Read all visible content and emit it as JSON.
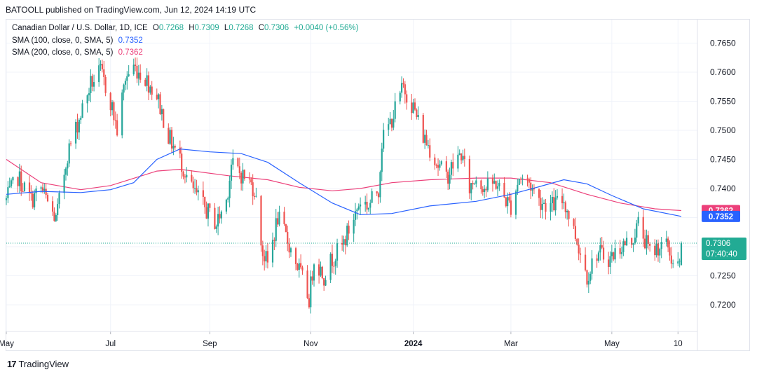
{
  "header": {
    "publisher_line": "BATOOLL published on TradingView.com, Jun 12, 2024 14:19 UTC"
  },
  "legend": {
    "symbol": "Canadian Dollar / U.S. Dollar, 1D, ICE",
    "o_label": "O",
    "o_value": "0.7268",
    "h_label": "H",
    "h_value": "0.7309",
    "l_label": "L",
    "l_value": "0.7268",
    "c_label": "C",
    "c_value": "0.7306",
    "change": "+0.0040 (+0.56%)",
    "sma100_label": "SMA (100, close, 0, SMA, 5)",
    "sma100_value": "0.7352",
    "sma200_label": "SMA (200, close, 0, SMA, 5)",
    "sma200_value": "0.7362"
  },
  "price_badges": {
    "sma200": "0.7362",
    "sma100": "0.7352",
    "last": "0.7306",
    "countdown": "07:40:40"
  },
  "footer": {
    "brand": "TradingView",
    "logo_text": "17"
  },
  "colors": {
    "up": "#26a69a",
    "down": "#ef5350",
    "sma100": "#2962ff",
    "sma200": "#ec407a",
    "grid": "#f0f3fa",
    "axis_text": "#131722",
    "last_price": "#22ab94"
  },
  "chart_data": {
    "type": "candlestick",
    "title": "Canadian Dollar / U.S. Dollar, 1D, ICE",
    "ylim": [
      0.7175,
      0.77
    ],
    "yticks": [
      0.72,
      0.725,
      0.73,
      0.735,
      0.74,
      0.745,
      0.75,
      0.755,
      0.76,
      0.765
    ],
    "ytick_labels": [
      "0.7200",
      "0.7250",
      "0.7300",
      "0.7350",
      "0.7400",
      "0.7450",
      "0.7500",
      "0.7550",
      "0.7600",
      "0.7650"
    ],
    "x_range": [
      "2023-05-01",
      "2024-06-12"
    ],
    "xticks": [
      {
        "date": "2023-05-01",
        "label": "May",
        "bold": false
      },
      {
        "date": "2023-07-03",
        "label": "Jul",
        "bold": false
      },
      {
        "date": "2023-09-01",
        "label": "Sep",
        "bold": false
      },
      {
        "date": "2023-11-01",
        "label": "Nov",
        "bold": false
      },
      {
        "date": "2024-01-02",
        "label": "2024",
        "bold": true
      },
      {
        "date": "2024-03-01",
        "label": "Mar",
        "bold": false
      },
      {
        "date": "2024-05-01",
        "label": "May",
        "bold": false
      },
      {
        "date": "2024-06-10",
        "label": "10",
        "bold": false
      }
    ],
    "close_path": [
      [
        "2023-05-01",
        0.738
      ],
      [
        "2023-05-08",
        0.742
      ],
      [
        "2023-05-16",
        0.738
      ],
      [
        "2023-05-22",
        0.74
      ],
      [
        "2023-05-31",
        0.7345
      ],
      [
        "2023-06-07",
        0.746
      ],
      [
        "2023-06-14",
        0.752
      ],
      [
        "2023-06-21",
        0.758
      ],
      [
        "2023-06-27",
        0.76
      ],
      [
        "2023-07-03",
        0.755
      ],
      [
        "2023-07-07",
        0.75
      ],
      [
        "2023-07-12",
        0.759
      ],
      [
        "2023-07-17",
        0.761
      ],
      [
        "2023-07-24",
        0.759
      ],
      [
        "2023-07-31",
        0.756
      ],
      [
        "2023-08-07",
        0.749
      ],
      [
        "2023-08-14",
        0.745
      ],
      [
        "2023-08-21",
        0.74
      ],
      [
        "2023-08-28",
        0.737
      ],
      [
        "2023-09-05",
        0.734
      ],
      [
        "2023-09-11",
        0.738
      ],
      [
        "2023-09-14",
        0.744
      ],
      [
        "2023-09-22",
        0.742
      ],
      [
        "2023-09-28",
        0.74
      ],
      [
        "2023-10-03",
        0.729
      ],
      [
        "2023-10-06",
        0.727
      ],
      [
        "2023-10-12",
        0.735
      ],
      [
        "2023-10-18",
        0.731
      ],
      [
        "2023-10-25",
        0.726
      ],
      [
        "2023-10-31",
        0.721
      ],
      [
        "2023-11-03",
        0.728
      ],
      [
        "2023-11-09",
        0.725
      ],
      [
        "2023-11-14",
        0.728
      ],
      [
        "2023-11-20",
        0.73
      ],
      [
        "2023-11-27",
        0.735
      ],
      [
        "2023-12-01",
        0.738
      ],
      [
        "2023-12-06",
        0.737
      ],
      [
        "2023-12-12",
        0.74
      ],
      [
        "2023-12-14",
        0.748
      ],
      [
        "2023-12-20",
        0.752
      ],
      [
        "2023-12-27",
        0.7575
      ],
      [
        "2024-01-02",
        0.754
      ],
      [
        "2024-01-08",
        0.749
      ],
      [
        "2024-01-12",
        0.747
      ],
      [
        "2024-01-17",
        0.744
      ],
      [
        "2024-01-22",
        0.742
      ],
      [
        "2024-01-26",
        0.744
      ],
      [
        "2024-01-31",
        0.746
      ],
      [
        "2024-02-05",
        0.74
      ],
      [
        "2024-02-09",
        0.742
      ],
      [
        "2024-02-15",
        0.74
      ],
      [
        "2024-02-21",
        0.741
      ],
      [
        "2024-02-27",
        0.738
      ],
      [
        "2024-03-01",
        0.737
      ],
      [
        "2024-03-06",
        0.742
      ],
      [
        "2024-03-12",
        0.741
      ],
      [
        "2024-03-18",
        0.738
      ],
      [
        "2024-03-25",
        0.737
      ],
      [
        "2024-04-02",
        0.738
      ],
      [
        "2024-04-09",
        0.732
      ],
      [
        "2024-04-16",
        0.725
      ],
      [
        "2024-04-22",
        0.729
      ],
      [
        "2024-04-30",
        0.728
      ],
      [
        "2024-05-06",
        0.73
      ],
      [
        "2024-05-13",
        0.731
      ],
      [
        "2024-05-17",
        0.734
      ],
      [
        "2024-05-24",
        0.729
      ],
      [
        "2024-05-29",
        0.73
      ],
      [
        "2024-06-04",
        0.73
      ],
      [
        "2024-06-07",
        0.727
      ],
      [
        "2024-06-11",
        0.7266
      ],
      [
        "2024-06-12",
        0.7306
      ]
    ],
    "last_candle": {
      "open": 0.7268,
      "high": 0.7309,
      "low": 0.7268,
      "close": 0.7306
    },
    "series": [
      {
        "name": "SMA (100, close, 0, SMA, 5)",
        "color": "#2962ff",
        "points": [
          [
            "2023-05-01",
            0.739
          ],
          [
            "2023-05-22",
            0.7395
          ],
          [
            "2023-06-15",
            0.7393
          ],
          [
            "2023-07-03",
            0.7398
          ],
          [
            "2023-07-17",
            0.741
          ],
          [
            "2023-07-31",
            0.745
          ],
          [
            "2023-08-14",
            0.7468
          ],
          [
            "2023-09-01",
            0.7463
          ],
          [
            "2023-09-20",
            0.746
          ],
          [
            "2023-10-06",
            0.7445
          ],
          [
            "2023-10-25",
            0.741
          ],
          [
            "2023-11-14",
            0.7375
          ],
          [
            "2023-12-01",
            0.7355
          ],
          [
            "2023-12-20",
            0.7357
          ],
          [
            "2024-01-12",
            0.737
          ],
          [
            "2024-02-09",
            0.7378
          ],
          [
            "2024-03-01",
            0.739
          ],
          [
            "2024-03-18",
            0.7403
          ],
          [
            "2024-04-02",
            0.7415
          ],
          [
            "2024-04-16",
            0.7408
          ],
          [
            "2024-05-01",
            0.7388
          ],
          [
            "2024-05-20",
            0.7365
          ],
          [
            "2024-06-12",
            0.7352
          ]
        ]
      },
      {
        "name": "SMA (200, close, 0, SMA, 5)",
        "color": "#ec407a",
        "points": [
          [
            "2023-05-01",
            0.745
          ],
          [
            "2023-05-22",
            0.741
          ],
          [
            "2023-06-15",
            0.7398
          ],
          [
            "2023-07-03",
            0.7405
          ],
          [
            "2023-07-31",
            0.743
          ],
          [
            "2023-08-14",
            0.7433
          ],
          [
            "2023-09-12",
            0.7422
          ],
          [
            "2023-10-06",
            0.7415
          ],
          [
            "2023-10-25",
            0.7402
          ],
          [
            "2023-11-14",
            0.7396
          ],
          [
            "2023-12-01",
            0.74
          ],
          [
            "2023-12-20",
            0.741
          ],
          [
            "2024-01-12",
            0.7415
          ],
          [
            "2024-02-09",
            0.7418
          ],
          [
            "2024-03-01",
            0.7418
          ],
          [
            "2024-03-25",
            0.741
          ],
          [
            "2024-04-16",
            0.739
          ],
          [
            "2024-05-06",
            0.7375
          ],
          [
            "2024-05-27",
            0.7365
          ],
          [
            "2024-06-12",
            0.7362
          ]
        ]
      }
    ]
  }
}
